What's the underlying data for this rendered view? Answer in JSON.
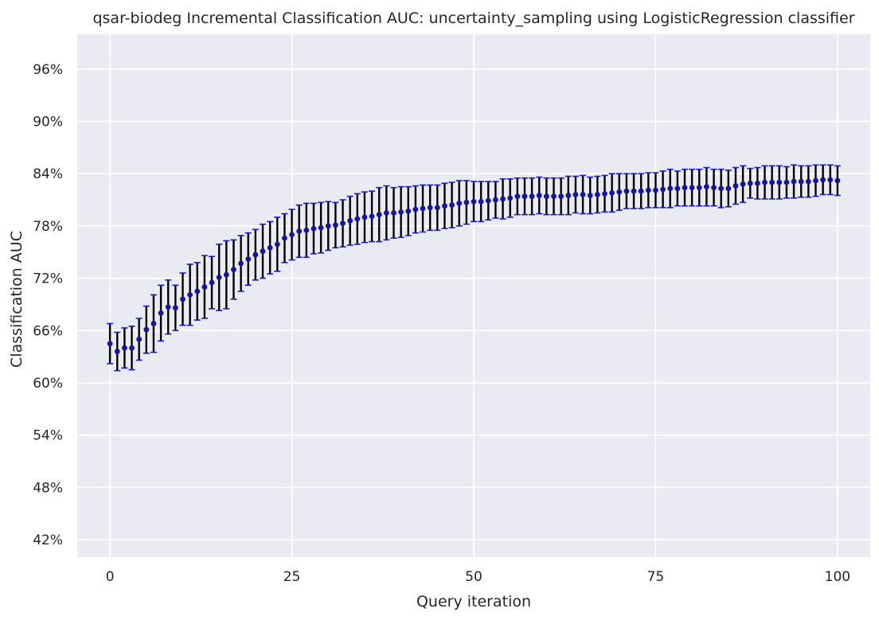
{
  "chart_data": {
    "type": "scatter",
    "title": "qsar-biodeg Incremental Classification AUC: uncertainty_sampling using LogisticRegression classifier",
    "xlabel": "Query iteration",
    "ylabel": "Classification AUC",
    "xlim": [
      -4.5,
      104.5
    ],
    "ylim": [
      40.0,
      100.0
    ],
    "x_ticks": [
      0,
      25,
      50,
      75,
      100
    ],
    "x_tick_labels": [
      "0",
      "25",
      "50",
      "75",
      "100"
    ],
    "y_ticks": [
      42,
      48,
      54,
      60,
      66,
      72,
      78,
      84,
      90,
      96
    ],
    "y_tick_labels": [
      "42%",
      "48%",
      "54%",
      "60%",
      "66%",
      "72%",
      "78%",
      "84%",
      "90%",
      "96%"
    ],
    "grid": true,
    "background_color": "#eaeaf2",
    "grid_color": "#ffffff",
    "marker_color": "#1414a0",
    "errorbar_color": "#000000",
    "cap_color": "#1a1ad0",
    "series": [
      {
        "x": [
          0,
          1,
          2,
          3,
          4,
          5,
          6,
          7,
          8,
          9,
          10,
          11,
          12,
          13,
          14,
          15,
          16,
          17,
          18,
          19,
          20,
          21,
          22,
          23,
          24,
          25,
          26,
          27,
          28,
          29,
          30,
          31,
          32,
          33,
          34,
          35,
          36,
          37,
          38,
          39,
          40,
          41,
          42,
          43,
          44,
          45,
          46,
          47,
          48,
          49,
          50,
          51,
          52,
          53,
          54,
          55,
          56,
          57,
          58,
          59,
          60,
          61,
          62,
          63,
          64,
          65,
          66,
          67,
          68,
          69,
          70,
          71,
          72,
          73,
          74,
          75,
          76,
          77,
          78,
          79,
          80,
          81,
          82,
          83,
          84,
          85,
          86,
          87,
          88,
          89,
          90,
          91,
          92,
          93,
          94,
          95,
          96,
          97,
          98,
          99,
          100
        ],
        "y": [
          64.5,
          63.6,
          64.0,
          64.0,
          65.0,
          66.1,
          66.8,
          68.0,
          68.7,
          68.6,
          69.6,
          70.1,
          70.5,
          71.0,
          71.5,
          72.1,
          72.4,
          73.0,
          73.7,
          74.2,
          74.7,
          75.1,
          75.5,
          75.9,
          76.6,
          77.0,
          77.4,
          77.5,
          77.7,
          77.8,
          78.0,
          78.1,
          78.3,
          78.6,
          78.8,
          79.0,
          79.1,
          79.3,
          79.5,
          79.5,
          79.6,
          79.7,
          79.9,
          80.0,
          80.1,
          80.1,
          80.3,
          80.4,
          80.6,
          80.7,
          80.8,
          80.8,
          80.9,
          81.0,
          81.1,
          81.2,
          81.4,
          81.4,
          81.4,
          81.5,
          81.4,
          81.4,
          81.4,
          81.5,
          81.6,
          81.6,
          81.5,
          81.6,
          81.7,
          81.8,
          81.9,
          82.0,
          82.0,
          82.0,
          82.1,
          82.1,
          82.2,
          82.3,
          82.3,
          82.4,
          82.4,
          82.4,
          82.5,
          82.4,
          82.3,
          82.3,
          82.6,
          82.8,
          82.9,
          82.9,
          83.0,
          83.0,
          83.0,
          83.0,
          83.1,
          83.1,
          83.1,
          83.2,
          83.3,
          83.3,
          83.2
        ],
        "err": [
          2.3,
          2.2,
          2.3,
          2.5,
          2.4,
          2.7,
          3.3,
          3.2,
          3.1,
          2.6,
          3.0,
          3.5,
          3.3,
          3.6,
          3.0,
          3.8,
          3.9,
          3.4,
          3.2,
          3.0,
          2.9,
          3.1,
          3.0,
          3.1,
          2.8,
          2.9,
          3.0,
          3.1,
          2.9,
          2.9,
          2.8,
          2.6,
          2.7,
          2.8,
          2.9,
          2.9,
          2.9,
          3.1,
          3.1,
          2.9,
          2.9,
          2.8,
          2.7,
          2.7,
          2.6,
          2.6,
          2.6,
          2.6,
          2.6,
          2.5,
          2.3,
          2.3,
          2.2,
          2.1,
          2.3,
          2.2,
          2.1,
          2.1,
          2.1,
          2.1,
          2.1,
          2.1,
          2.1,
          2.2,
          2.1,
          2.2,
          2.1,
          2.1,
          2.1,
          2.2,
          2.1,
          2.0,
          2.0,
          2.0,
          2.0,
          2.0,
          2.1,
          2.2,
          2.0,
          2.1,
          2.1,
          2.1,
          2.2,
          2.1,
          2.2,
          2.1,
          2.1,
          2.1,
          1.7,
          1.8,
          1.9,
          1.9,
          1.9,
          1.8,
          1.9,
          1.8,
          1.8,
          1.8,
          1.7,
          1.7,
          1.7
        ]
      }
    ]
  }
}
